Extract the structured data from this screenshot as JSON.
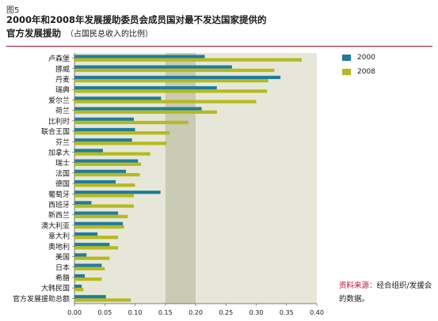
{
  "figure_label": "图5",
  "title_line1": "2000年和2008年发展援助委员会成员国对最不发达国家提供的",
  "title_line2": "官方发展援助",
  "subtitle": "（占国民总收入的比例）",
  "source_label": "资料来源：",
  "source_text": "经合组织/发援会的数据。",
  "colors": {
    "series2000": "#1f7d99",
    "series2008": "#b5ba1e",
    "plot_bg": "#e7e7d9",
    "band": "#cacbb3",
    "accent": "#a5122f"
  },
  "chart_data": {
    "type": "bar",
    "orientation": "horizontal",
    "categories": [
      "卢森堡",
      "挪威",
      "丹麦",
      "瑞典",
      "爱尔兰",
      "荷兰",
      "比利时",
      "联合王国",
      "芬兰",
      "加拿大",
      "瑞士",
      "法国",
      "德国",
      "葡萄牙",
      "西班牙",
      "新西兰",
      "澳大利亚",
      "意大利",
      "奥地利",
      "美国",
      "日本",
      "希腊",
      "大韩民国",
      "官方发展援助总额"
    ],
    "series": [
      {
        "name": "2000",
        "values": [
          0.215,
          0.26,
          0.34,
          0.235,
          0.143,
          0.21,
          0.098,
          0.1,
          0.095,
          0.047,
          0.105,
          0.085,
          0.068,
          0.142,
          0.028,
          0.072,
          0.08,
          0.038,
          0.058,
          0.02,
          0.045,
          0.017,
          0.012,
          0.052
        ]
      },
      {
        "name": "2008",
        "values": [
          0.375,
          0.33,
          0.32,
          0.318,
          0.3,
          0.235,
          0.188,
          0.157,
          0.152,
          0.125,
          0.11,
          0.108,
          0.1,
          0.098,
          0.098,
          0.088,
          0.082,
          0.072,
          0.072,
          0.058,
          0.05,
          0.045,
          0.015,
          0.093
        ]
      }
    ],
    "xlim": [
      0,
      0.4
    ],
    "xticks": [
      "0.00",
      "0.05",
      "0.10",
      "0.15",
      "0.20",
      "0.25",
      "0.30",
      "0.35",
      "0.40"
    ],
    "highlight_band": [
      0.15,
      0.2
    ],
    "legend_position": "right"
  }
}
